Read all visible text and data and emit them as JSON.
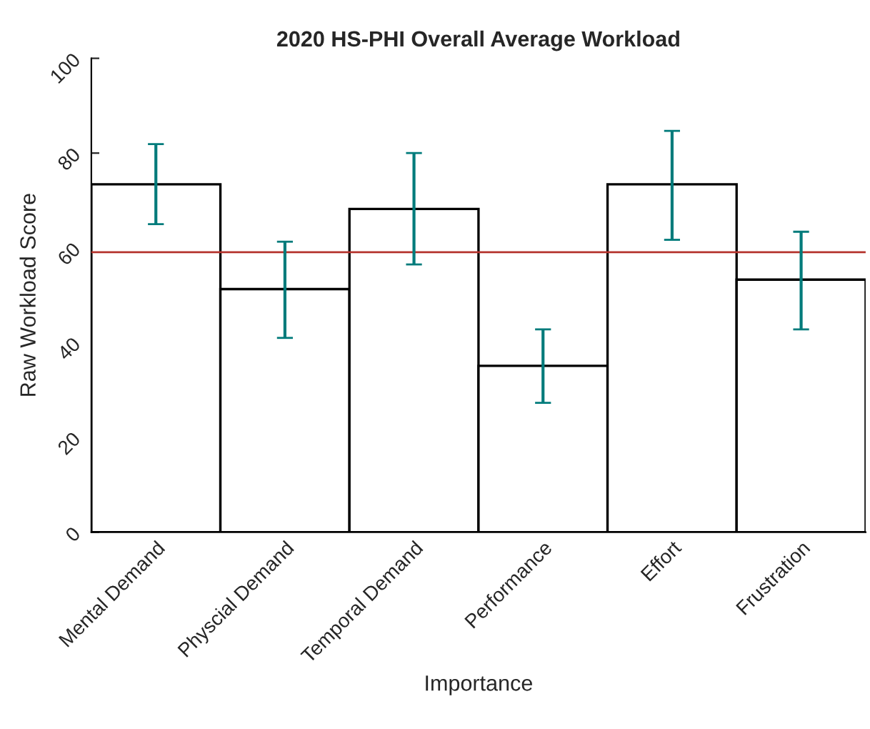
{
  "chart_data": {
    "type": "bar",
    "title": "2020 HS-PHI Overall Average Workload",
    "xlabel": "Importance",
    "ylabel": "Raw Workload Score",
    "categories": [
      "Mental Demand",
      "Physcial Demand",
      "Temporal Demand",
      "Performance",
      "Effort",
      "Frustration"
    ],
    "series": [
      {
        "color": "#ffffff",
        "values": [
          73.4,
          51.3,
          68.2,
          35.1,
          73.4,
          53.3
        ],
        "errors": [
          [
            65.0,
            81.9
          ],
          [
            41.0,
            61.3
          ],
          [
            56.5,
            80.0
          ],
          [
            27.3,
            42.8
          ],
          [
            61.7,
            84.7
          ],
          [
            42.8,
            63.4
          ]
        ]
      }
    ],
    "ylim": [
      0,
      100
    ],
    "yticks": [
      0,
      20,
      40,
      60,
      80,
      100
    ],
    "ref_lines": [
      {
        "axis": "y",
        "value": 59.1,
        "color": "#b5342e"
      }
    ],
    "grid": false
  }
}
